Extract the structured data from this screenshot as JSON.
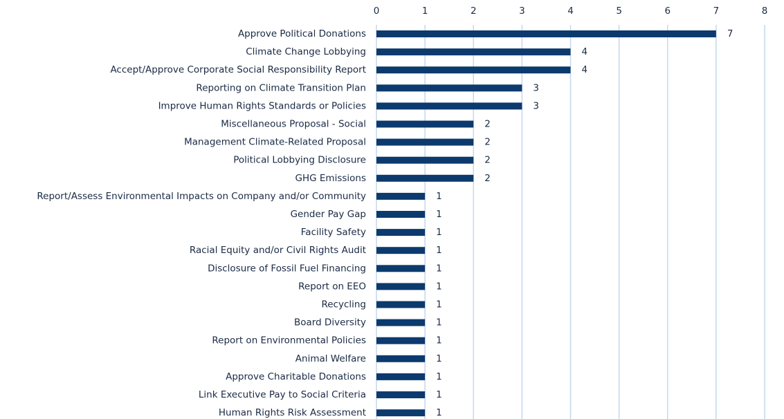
{
  "chart_data": {
    "type": "barh",
    "categories": [
      "Approve Political Donations",
      "Climate Change Lobbying",
      "Accept/Approve Corporate Social Responsibility Report",
      "Reporting on Climate Transition Plan",
      "Improve Human Rights Standards or Policies",
      "Miscellaneous Proposal - Social",
      "Management Climate-Related Proposal",
      "Political Lobbying Disclosure",
      "GHG Emissions",
      "Report/Assess Environmental Impacts on Company and/or Community",
      "Gender Pay Gap",
      "Facility Safety",
      "Racial Equity and/or Civil Rights Audit",
      "Disclosure of Fossil Fuel Financing",
      "Report on EEO",
      "Recycling",
      "Board Diversity",
      "Report on Environmental Policies",
      "Animal Welfare",
      "Approve Charitable Donations",
      "Link Executive Pay to Social Criteria",
      "Human Rights Risk Assessment"
    ],
    "values": [
      7,
      4,
      4,
      3,
      3,
      2,
      2,
      2,
      2,
      1,
      1,
      1,
      1,
      1,
      1,
      1,
      1,
      1,
      1,
      1,
      1,
      1
    ],
    "color": "#0c3a6e",
    "xlim": [
      0,
      8
    ],
    "xticks": [
      0,
      1,
      2,
      3,
      4,
      5,
      6,
      7,
      8
    ],
    "grid": true
  }
}
